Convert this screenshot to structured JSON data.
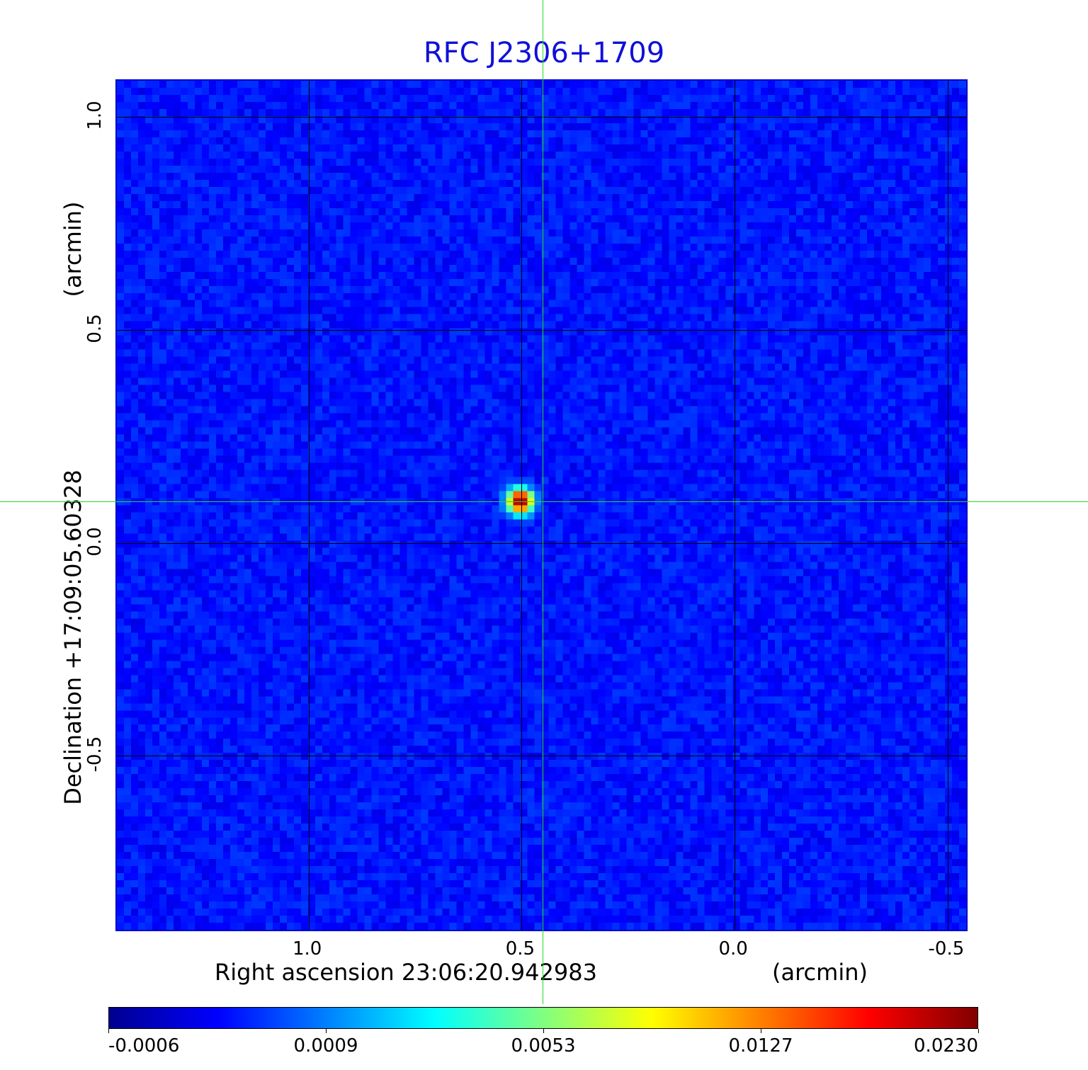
{
  "chart_data": {
    "type": "heatmap",
    "title": "RFC J2306+1709",
    "colormap": "jet",
    "xlabel": "Right ascension  23:06:20.942983",
    "xlabel_unit": "(arcmin)",
    "ylabel": "Declination  +17:09:05.60328",
    "ylabel_unit": "(arcmin)",
    "xlim": [
      1.45,
      -0.55
    ],
    "ylim": [
      -0.915,
      1.085
    ],
    "x_ticks": [
      "1.0",
      "0.5",
      "0.0",
      "-0.5"
    ],
    "y_ticks": [
      "1.0",
      "0.5",
      "0.0",
      "-0.5"
    ],
    "grid": true,
    "source_peak": {
      "x": 0.5,
      "y": 0.095,
      "value": 0.023
    },
    "background_level": 0.0001,
    "colorbar": {
      "range": [
        -0.0006,
        0.023
      ],
      "tick_labels": [
        "-0.0006",
        "0.0009",
        "0.0053",
        "0.0127",
        "0.0230"
      ],
      "colors": [
        "#00008f",
        "#0000ff",
        "#0080ff",
        "#00ffff",
        "#80ff80",
        "#ffff00",
        "#ff8000",
        "#ff0000",
        "#800000"
      ]
    },
    "crosshair_color": "#22dd22",
    "title_color": "#1010d8"
  }
}
